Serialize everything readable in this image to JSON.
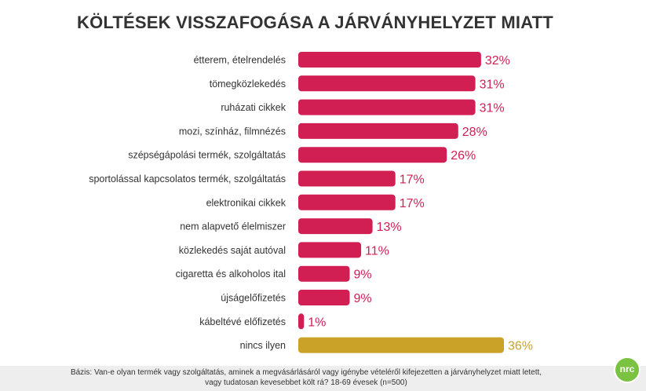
{
  "title": "KÖLTÉSEK VISSZAFOGÁSA A JÁRVÁNYHELYZET MIATT",
  "footnote": {
    "line1": "Bázis:  Van-e olyan termék vagy szolgáltatás, aminek a megvásárlásáról vagy igénybe vételéről kifejezetten a járványhelyzet miatt letett,",
    "line2": "vagy tudatosan kevesebbet költ rá? 18-69 évesek (n=500)"
  },
  "logo_text": "nrc",
  "colors": {
    "primary_bar": "#d11f54",
    "highlight_bar": "#c9a227",
    "label_text": "#333333",
    "logo": "#7cc242"
  },
  "chart_data": {
    "type": "bar",
    "orientation": "horizontal",
    "title": "KÖLTÉSEK VISSZAFOGÁSA A JÁRVÁNYHELYZET MIATT",
    "xlabel": "",
    "ylabel": "",
    "xlim": [
      0,
      36
    ],
    "unit": "%",
    "categories": [
      "étterem, ételrendelés",
      "tömegközlekedés",
      "ruházati cikkek",
      "mozi, színház, filmnézés",
      "szépségápolási termék, szolgáltatás",
      "sportolással kapcsolatos termék, szolgáltatás",
      "elektronikai cikkek",
      "nem alapvető élelmiszer",
      "közlekedés saját autóval",
      "cigaretta és alkoholos ital",
      "újságelőfizetés",
      "kábeltévé előfizetés",
      "nincs ilyen"
    ],
    "values": [
      32,
      31,
      31,
      28,
      26,
      17,
      17,
      13,
      11,
      9,
      9,
      1,
      36
    ],
    "value_labels": [
      "32%",
      "31%",
      "31%",
      "28%",
      "26%",
      "17%",
      "17%",
      "13%",
      "11%",
      "9%",
      "9%",
      "1%",
      "36%"
    ],
    "highlight_category": "nincs ilyen"
  }
}
